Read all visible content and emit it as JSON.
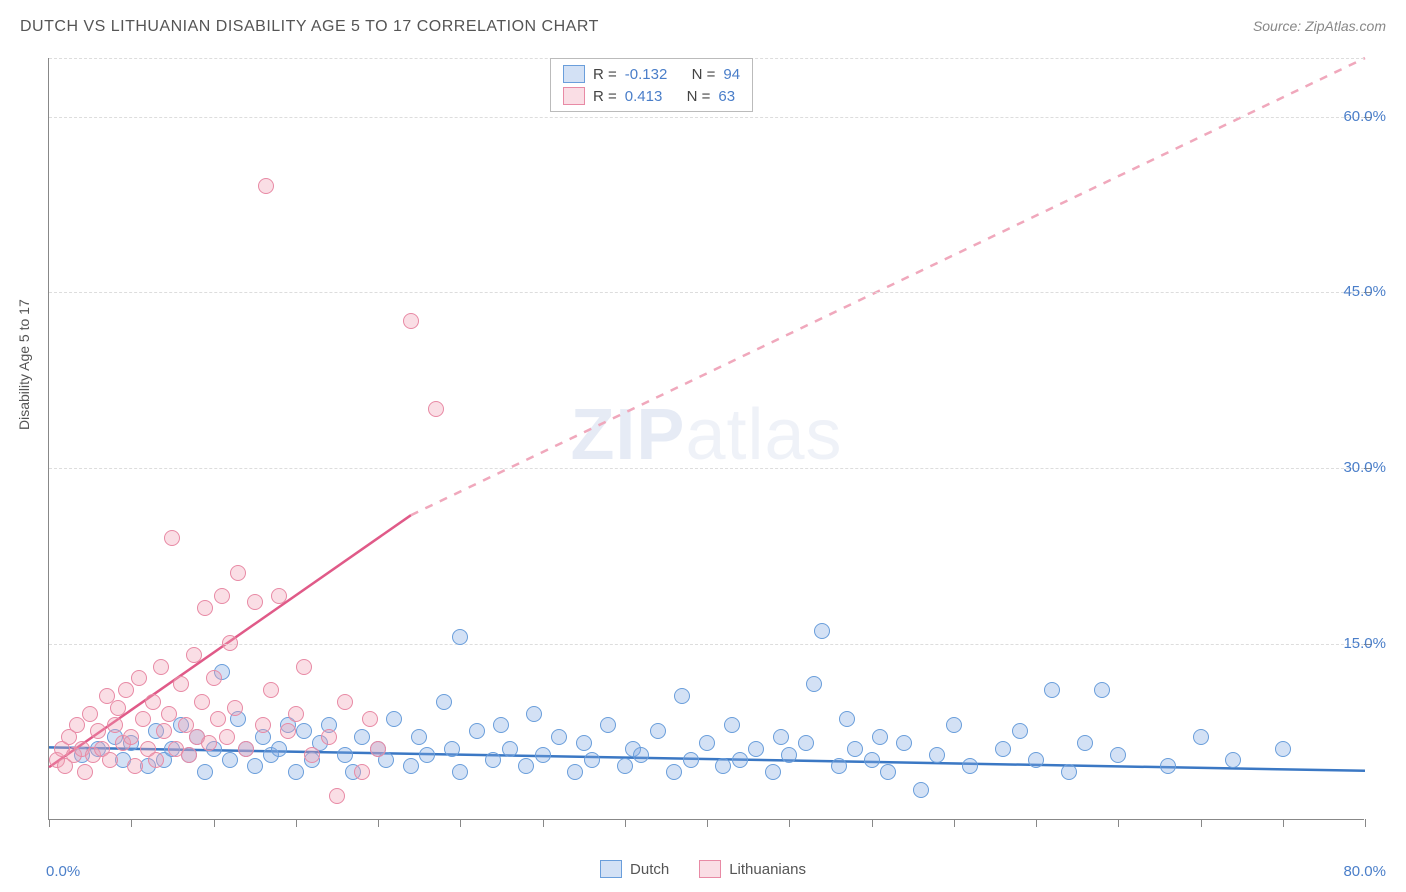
{
  "title": "DUTCH VS LITHUANIAN DISABILITY AGE 5 TO 17 CORRELATION CHART",
  "source": "Source: ZipAtlas.com",
  "y_axis_label": "Disability Age 5 to 17",
  "watermark_bold": "ZIP",
  "watermark_light": "atlas",
  "chart": {
    "type": "scatter",
    "xlim": [
      0,
      80
    ],
    "ylim": [
      0,
      65
    ],
    "x_tick_step": 5,
    "y_ticks": [
      15,
      30,
      45,
      60
    ],
    "y_tick_labels": [
      "15.0%",
      "30.0%",
      "45.0%",
      "60.0%"
    ],
    "x_min_label": "0.0%",
    "x_max_label": "80.0%",
    "grid_color": "#dddddd",
    "axis_color": "#888888",
    "label_color": "#4a7ec9",
    "background_color": "#ffffff",
    "marker_size": 16,
    "series": [
      {
        "name": "Dutch",
        "color_fill": "rgba(130,170,225,0.35)",
        "color_stroke": "#6a9edb",
        "R": -0.132,
        "N": 94,
        "trend": {
          "x1": 0,
          "y1": 6.2,
          "x2": 80,
          "y2": 4.2,
          "dash": false,
          "color": "#3b78c4"
        },
        "points": [
          [
            2,
            5.5
          ],
          [
            3,
            6
          ],
          [
            4,
            7
          ],
          [
            4.5,
            5
          ],
          [
            5,
            6.5
          ],
          [
            6,
            4.5
          ],
          [
            6.5,
            7.5
          ],
          [
            7,
            5
          ],
          [
            7.5,
            6
          ],
          [
            8,
            8
          ],
          [
            8.5,
            5.5
          ],
          [
            9,
            7
          ],
          [
            9.5,
            4
          ],
          [
            10,
            6
          ],
          [
            10.5,
            12.5
          ],
          [
            11,
            5
          ],
          [
            11.5,
            8.5
          ],
          [
            12,
            6
          ],
          [
            12.5,
            4.5
          ],
          [
            13,
            7
          ],
          [
            13.5,
            5.5
          ],
          [
            14,
            6
          ],
          [
            14.5,
            8
          ],
          [
            15,
            4
          ],
          [
            15.5,
            7.5
          ],
          [
            16,
            5
          ],
          [
            16.5,
            6.5
          ],
          [
            17,
            8
          ],
          [
            18,
            5.5
          ],
          [
            18.5,
            4
          ],
          [
            19,
            7
          ],
          [
            20,
            6
          ],
          [
            20.5,
            5
          ],
          [
            21,
            8.5
          ],
          [
            22,
            4.5
          ],
          [
            22.5,
            7
          ],
          [
            23,
            5.5
          ],
          [
            24,
            10
          ],
          [
            24.5,
            6
          ],
          [
            25,
            4
          ],
          [
            25,
            15.5
          ],
          [
            26,
            7.5
          ],
          [
            27,
            5
          ],
          [
            27.5,
            8
          ],
          [
            28,
            6
          ],
          [
            29,
            4.5
          ],
          [
            29.5,
            9
          ],
          [
            30,
            5.5
          ],
          [
            31,
            7
          ],
          [
            32,
            4
          ],
          [
            32.5,
            6.5
          ],
          [
            33,
            5
          ],
          [
            34,
            8
          ],
          [
            35,
            4.5
          ],
          [
            35.5,
            6
          ],
          [
            36,
            5.5
          ],
          [
            37,
            7.5
          ],
          [
            38,
            4
          ],
          [
            38.5,
            10.5
          ],
          [
            39,
            5
          ],
          [
            40,
            6.5
          ],
          [
            41,
            4.5
          ],
          [
            41.5,
            8
          ],
          [
            42,
            5
          ],
          [
            43,
            6
          ],
          [
            44,
            4
          ],
          [
            44.5,
            7
          ],
          [
            45,
            5.5
          ],
          [
            46,
            6.5
          ],
          [
            46.5,
            11.5
          ],
          [
            47,
            16
          ],
          [
            48,
            4.5
          ],
          [
            48.5,
            8.5
          ],
          [
            49,
            6
          ],
          [
            50,
            5
          ],
          [
            50.5,
            7
          ],
          [
            51,
            4
          ],
          [
            52,
            6.5
          ],
          [
            53,
            2.5
          ],
          [
            54,
            5.5
          ],
          [
            55,
            8
          ],
          [
            56,
            4.5
          ],
          [
            58,
            6
          ],
          [
            59,
            7.5
          ],
          [
            60,
            5
          ],
          [
            61,
            11
          ],
          [
            62,
            4
          ],
          [
            63,
            6.5
          ],
          [
            64,
            11
          ],
          [
            65,
            5.5
          ],
          [
            68,
            4.5
          ],
          [
            70,
            7
          ],
          [
            72,
            5
          ],
          [
            75,
            6
          ]
        ]
      },
      {
        "name": "Lithuanians",
        "color_fill": "rgba(240,160,180,0.35)",
        "color_stroke": "#e88aa5",
        "R": 0.413,
        "N": 63,
        "trend_solid": {
          "x1": 0,
          "y1": 4.5,
          "x2": 22,
          "y2": 26,
          "color": "#e05a88"
        },
        "trend_dash": {
          "x1": 22,
          "y1": 26,
          "x2": 80,
          "y2": 65,
          "color": "#f0a8bc"
        },
        "points": [
          [
            0.5,
            5
          ],
          [
            0.8,
            6
          ],
          [
            1,
            4.5
          ],
          [
            1.2,
            7
          ],
          [
            1.5,
            5.5
          ],
          [
            1.7,
            8
          ],
          [
            2,
            6
          ],
          [
            2.2,
            4
          ],
          [
            2.5,
            9
          ],
          [
            2.7,
            5.5
          ],
          [
            3,
            7.5
          ],
          [
            3.2,
            6
          ],
          [
            3.5,
            10.5
          ],
          [
            3.7,
            5
          ],
          [
            4,
            8
          ],
          [
            4.2,
            9.5
          ],
          [
            4.5,
            6.5
          ],
          [
            4.7,
            11
          ],
          [
            5,
            7
          ],
          [
            5.2,
            4.5
          ],
          [
            5.5,
            12
          ],
          [
            5.7,
            8.5
          ],
          [
            6,
            6
          ],
          [
            6.3,
            10
          ],
          [
            6.5,
            5
          ],
          [
            6.8,
            13
          ],
          [
            7,
            7.5
          ],
          [
            7.3,
            9
          ],
          [
            7.5,
            24
          ],
          [
            7.7,
            6
          ],
          [
            8,
            11.5
          ],
          [
            8.3,
            8
          ],
          [
            8.5,
            5.5
          ],
          [
            8.8,
            14
          ],
          [
            9,
            7
          ],
          [
            9.3,
            10
          ],
          [
            9.5,
            18
          ],
          [
            9.7,
            6.5
          ],
          [
            10,
            12
          ],
          [
            10.3,
            8.5
          ],
          [
            10.5,
            19
          ],
          [
            10.8,
            7
          ],
          [
            11,
            15
          ],
          [
            11.3,
            9.5
          ],
          [
            11.5,
            21
          ],
          [
            12,
            6
          ],
          [
            12.5,
            18.5
          ],
          [
            13,
            8
          ],
          [
            13.2,
            54
          ],
          [
            13.5,
            11
          ],
          [
            14,
            19
          ],
          [
            14.5,
            7.5
          ],
          [
            15,
            9
          ],
          [
            15.5,
            13
          ],
          [
            16,
            5.5
          ],
          [
            17,
            7
          ],
          [
            17.5,
            2
          ],
          [
            18,
            10
          ],
          [
            19,
            4
          ],
          [
            19.5,
            8.5
          ],
          [
            20,
            6
          ],
          [
            22,
            42.5
          ],
          [
            23.5,
            35
          ]
        ]
      }
    ]
  },
  "legend": {
    "rows": [
      {
        "color": "blue",
        "R_label": "R =",
        "R": "-0.132",
        "N_label": "N =",
        "N": "94"
      },
      {
        "color": "pink",
        "R_label": "R =",
        "R": "0.413",
        "N_label": "N =",
        "N": "63"
      }
    ]
  },
  "footer_legend": [
    {
      "color": "blue",
      "label": "Dutch"
    },
    {
      "color": "pink",
      "label": "Lithuanians"
    }
  ]
}
